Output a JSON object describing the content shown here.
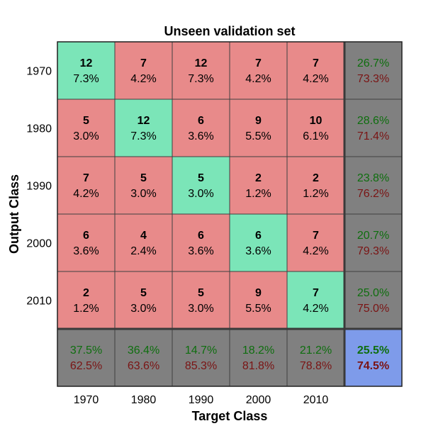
{
  "chart_data": {
    "type": "heatmap",
    "title": "Unseen validation set",
    "xlabel": "Target Class",
    "ylabel": "Output Class",
    "classes": [
      "1970",
      "1980",
      "1990",
      "2000",
      "2010"
    ],
    "cells": [
      [
        {
          "count": "12",
          "pct": "7.3%"
        },
        {
          "count": "7",
          "pct": "4.2%"
        },
        {
          "count": "12",
          "pct": "7.3%"
        },
        {
          "count": "7",
          "pct": "4.2%"
        },
        {
          "count": "7",
          "pct": "4.2%"
        }
      ],
      [
        {
          "count": "5",
          "pct": "3.0%"
        },
        {
          "count": "12",
          "pct": "7.3%"
        },
        {
          "count": "6",
          "pct": "3.6%"
        },
        {
          "count": "9",
          "pct": "5.5%"
        },
        {
          "count": "10",
          "pct": "6.1%"
        }
      ],
      [
        {
          "count": "7",
          "pct": "4.2%"
        },
        {
          "count": "5",
          "pct": "3.0%"
        },
        {
          "count": "5",
          "pct": "3.0%"
        },
        {
          "count": "2",
          "pct": "1.2%"
        },
        {
          "count": "2",
          "pct": "1.2%"
        }
      ],
      [
        {
          "count": "6",
          "pct": "3.6%"
        },
        {
          "count": "4",
          "pct": "2.4%"
        },
        {
          "count": "6",
          "pct": "3.6%"
        },
        {
          "count": "6",
          "pct": "3.6%"
        },
        {
          "count": "7",
          "pct": "4.2%"
        }
      ],
      [
        {
          "count": "2",
          "pct": "1.2%"
        },
        {
          "count": "5",
          "pct": "3.0%"
        },
        {
          "count": "5",
          "pct": "3.0%"
        },
        {
          "count": "9",
          "pct": "5.5%"
        },
        {
          "count": "7",
          "pct": "4.2%"
        }
      ]
    ],
    "row_summary": [
      {
        "correct": "26.7%",
        "wrong": "73.3%"
      },
      {
        "correct": "28.6%",
        "wrong": "71.4%"
      },
      {
        "correct": "23.8%",
        "wrong": "76.2%"
      },
      {
        "correct": "20.7%",
        "wrong": "79.3%"
      },
      {
        "correct": "25.0%",
        "wrong": "75.0%"
      }
    ],
    "col_summary": [
      {
        "correct": "37.5%",
        "wrong": "62.5%"
      },
      {
        "correct": "36.4%",
        "wrong": "63.6%"
      },
      {
        "correct": "14.7%",
        "wrong": "85.3%"
      },
      {
        "correct": "18.2%",
        "wrong": "81.8%"
      },
      {
        "correct": "21.2%",
        "wrong": "78.8%"
      }
    ],
    "overall": {
      "correct": "25.5%",
      "wrong": "74.5%"
    }
  },
  "colors": {
    "diagonal": "#7be5b8",
    "off_diagonal": "#e88a8a",
    "summary": "#808080",
    "overall": "#7e9bea",
    "correct_text": "#0e6e0e",
    "wrong_text": "#7a1414",
    "text": "#000000",
    "grid": "#404040"
  }
}
